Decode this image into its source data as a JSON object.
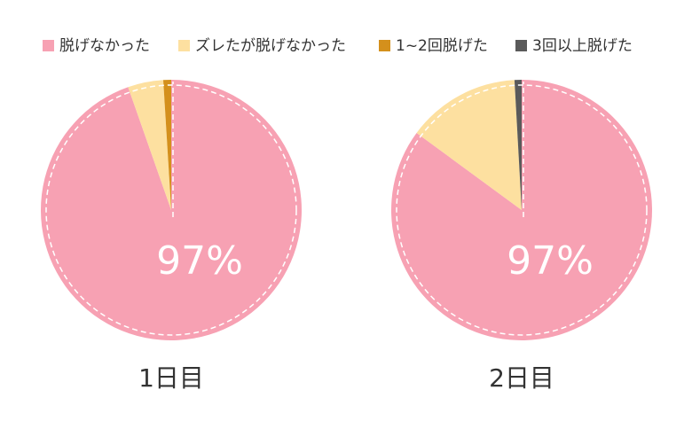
{
  "chart_data": [
    {
      "type": "pie",
      "title": "1日目",
      "categories": [
        "脱げなかった",
        "ズレたが脱げなかった",
        "1~2回脱げた",
        "3回以上脱げた"
      ],
      "colors": [
        "#f7a1b3",
        "#fde0a0",
        "#d4901c",
        "#5a5a5a"
      ],
      "values": [
        97,
        4.5,
        1,
        0
      ],
      "value_labels": [
        "97%",
        null,
        null,
        null
      ]
    },
    {
      "type": "pie",
      "title": "2日目",
      "categories": [
        "脱げなかった",
        "ズレたが脱げなかった",
        "1~2回脱げた",
        "3回以上脱げた"
      ],
      "colors": [
        "#f7a1b3",
        "#fde0a0",
        "#d4901c",
        "#5a5a5a"
      ],
      "values": [
        97,
        16,
        0,
        1
      ],
      "value_labels": [
        "97%",
        null,
        null,
        null
      ]
    }
  ]
}
